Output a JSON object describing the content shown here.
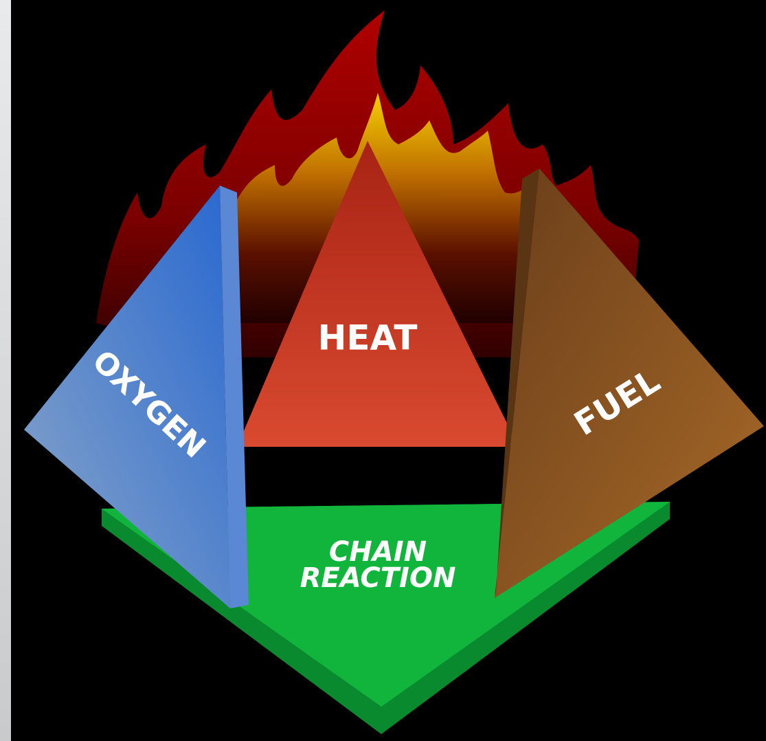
{
  "labels": {
    "heat": "HEAT",
    "oxygen": "OXYGEN",
    "fuel": "FUEL",
    "chain_reaction": [
      "CHAIN",
      "REACTION"
    ]
  }
}
